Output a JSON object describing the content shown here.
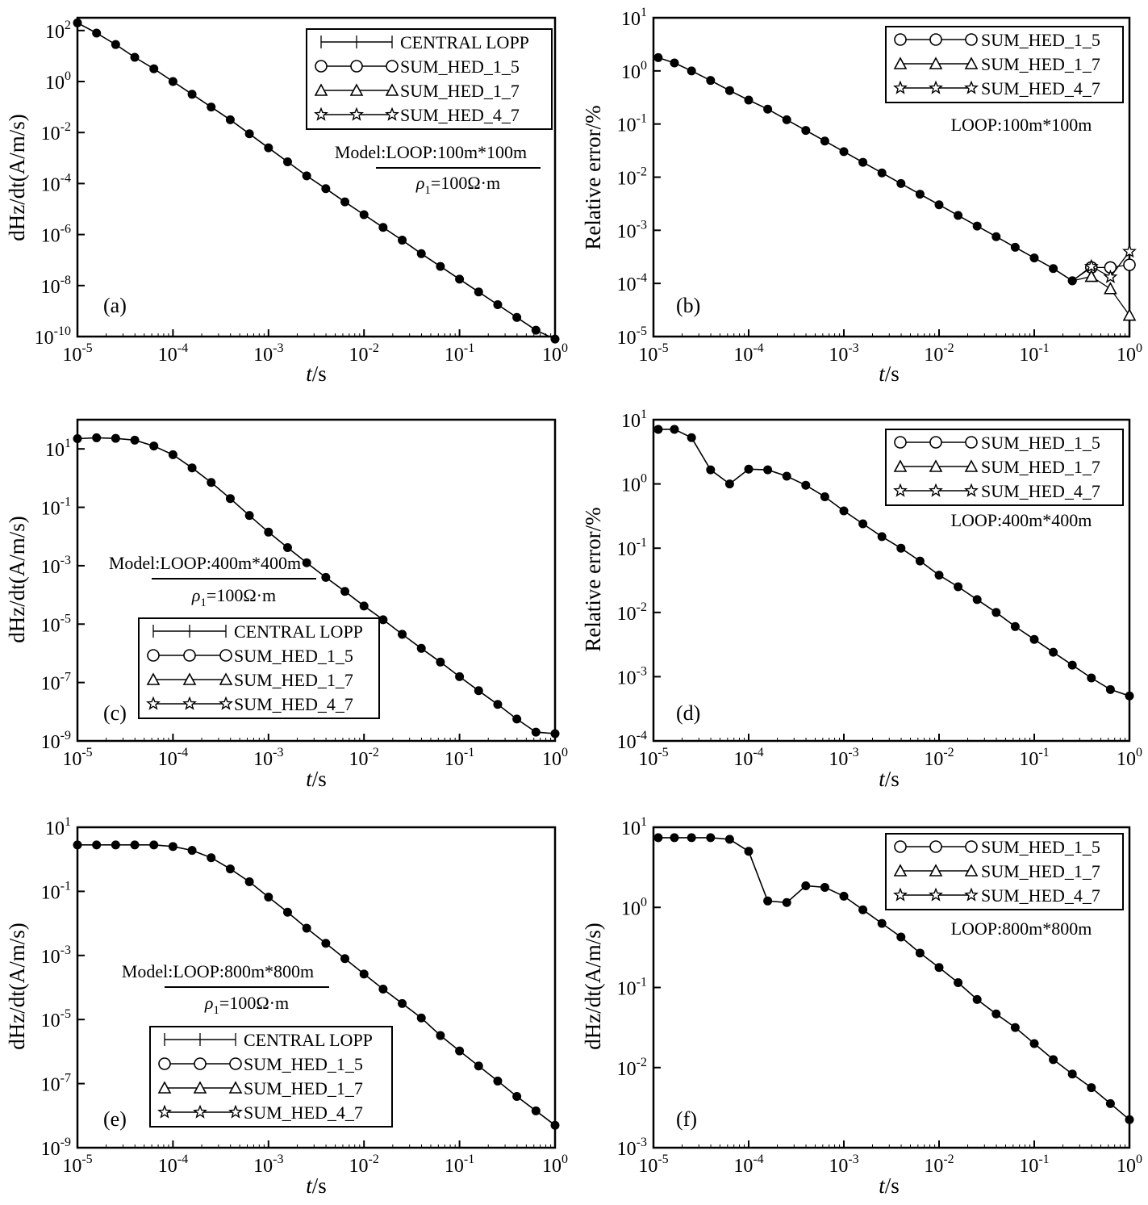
{
  "chart_data": [
    {
      "id": "a",
      "type": "line",
      "panel_label": "(a)",
      "xlabel_italic": "t",
      "xlabel_unit": "/s",
      "ylabel": "dHz/dt(A/m/s)",
      "xlim_log10": [
        -5,
        0
      ],
      "ylim_log10": [
        -10,
        2.5
      ],
      "x_ticks": [
        "-5",
        "-4",
        "-3",
        "-2",
        "-1",
        "0"
      ],
      "y_ticks": [
        "2",
        "0",
        "-2",
        "-4",
        "-6",
        "-8",
        "-10"
      ],
      "model": {
        "line1": "Model:LOOP:100m*100m",
        "rho": "ρ",
        "rho_sub": "1",
        "rho_rest": "=100Ω·m"
      },
      "legend": [
        "CENTRAL LOPP",
        "SUM_HED_1_5",
        "SUM_HED_1_7",
        "SUM_HED_4_7"
      ],
      "log_x": [
        -5.0,
        -4.8,
        -4.6,
        -4.4,
        -4.2,
        -4.0,
        -3.8,
        -3.6,
        -3.4,
        -3.2,
        -3.0,
        -2.8,
        -2.6,
        -2.4,
        -2.2,
        -2.0,
        -1.8,
        -1.6,
        -1.4,
        -1.2,
        -1.0,
        -0.8,
        -0.6,
        -0.4,
        -0.2,
        0.0
      ],
      "log_y": [
        2.3,
        1.9,
        1.45,
        0.95,
        0.5,
        0.0,
        -0.5,
        -1.0,
        -1.5,
        -2.05,
        -2.6,
        -3.15,
        -3.7,
        -4.2,
        -4.72,
        -5.22,
        -5.72,
        -6.22,
        -6.75,
        -7.25,
        -7.75,
        -8.25,
        -8.75,
        -9.25,
        -9.75,
        -10.1
      ]
    },
    {
      "id": "b",
      "type": "line",
      "panel_label": "(b)",
      "xlabel_italic": "t",
      "xlabel_unit": "/s",
      "ylabel": "Relative error/%",
      "xlim_log10": [
        -5,
        0
      ],
      "ylim_log10": [
        -5,
        1
      ],
      "x_ticks": [
        "-5",
        "-4",
        "-3",
        "-2",
        "-1",
        "0"
      ],
      "y_ticks": [
        "1",
        "0",
        "-1",
        "-2",
        "-3",
        "-4",
        "-5"
      ],
      "annotation": "LOOP:100m*100m",
      "legend": [
        "SUM_HED_1_5",
        "SUM_HED_1_7",
        "SUM_HED_4_7"
      ],
      "log_x": [
        -4.95,
        -4.78,
        -4.6,
        -4.4,
        -4.2,
        -4.0,
        -3.8,
        -3.6,
        -3.4,
        -3.2,
        -3.0,
        -2.8,
        -2.6,
        -2.4,
        -2.2,
        -2.0,
        -1.8,
        -1.6,
        -1.4,
        -1.2,
        -1.0,
        -0.8,
        -0.6
      ],
      "log_y": [
        0.25,
        0.15,
        0.0,
        -0.18,
        -0.37,
        -0.55,
        -0.72,
        -0.92,
        -1.12,
        -1.32,
        -1.52,
        -1.72,
        -1.92,
        -2.12,
        -2.32,
        -2.52,
        -2.72,
        -2.92,
        -3.12,
        -3.32,
        -3.52,
        -3.72,
        -3.95
      ],
      "tail_log_x": [
        -0.6,
        -0.4,
        -0.2,
        0.0
      ],
      "tail_series": [
        {
          "name": "SUM_HED_1_5",
          "log_y": [
            -3.95,
            -3.7,
            -3.7,
            -3.65
          ]
        },
        {
          "name": "SUM_HED_1_7",
          "log_y": [
            -3.95,
            -3.87,
            -4.1,
            -4.6
          ]
        },
        {
          "name": "SUM_HED_4_7",
          "log_y": [
            -3.95,
            -3.68,
            -3.88,
            -3.4
          ]
        }
      ]
    },
    {
      "id": "c",
      "type": "line",
      "panel_label": "(c)",
      "xlabel_italic": "t",
      "xlabel_unit": "/s",
      "ylabel": "dHz/dt(A/m/s)",
      "xlim_log10": [
        -5,
        0
      ],
      "ylim_log10": [
        -9,
        2
      ],
      "x_ticks": [
        "-5",
        "-4",
        "-3",
        "-2",
        "-1",
        "0"
      ],
      "y_ticks": [
        "1",
        "-1",
        "-3",
        "-5",
        "-7",
        "-9"
      ],
      "model": {
        "line1": "Model:LOOP:400m*400m",
        "rho": "ρ",
        "rho_sub": "1",
        "rho_rest": "=100Ω·m"
      },
      "legend": [
        "CENTRAL LOPP",
        "SUM_HED_1_5",
        "SUM_HED_1_7",
        "SUM_HED_4_7"
      ],
      "log_x": [
        -5.0,
        -4.8,
        -4.6,
        -4.4,
        -4.2,
        -4.0,
        -3.8,
        -3.6,
        -3.4,
        -3.2,
        -3.0,
        -2.8,
        -2.6,
        -2.4,
        -2.2,
        -2.0,
        -1.8,
        -1.6,
        -1.4,
        -1.2,
        -1.0,
        -0.8,
        -0.6,
        -0.4,
        -0.2,
        0.0
      ],
      "log_y": [
        1.35,
        1.38,
        1.36,
        1.3,
        1.1,
        0.8,
        0.35,
        -0.15,
        -0.7,
        -1.28,
        -1.85,
        -2.38,
        -2.9,
        -3.4,
        -3.88,
        -4.38,
        -4.85,
        -5.35,
        -5.83,
        -6.3,
        -6.8,
        -7.28,
        -7.75,
        -8.25,
        -8.7,
        -8.75
      ]
    },
    {
      "id": "d",
      "type": "line",
      "panel_label": "(d)",
      "xlabel_italic": "t",
      "xlabel_unit": "/s",
      "ylabel": "Relative error/%",
      "xlim_log10": [
        -5,
        0
      ],
      "ylim_log10": [
        -4,
        1
      ],
      "x_ticks": [
        "-5",
        "-4",
        "-3",
        "-2",
        "-1",
        "0"
      ],
      "y_ticks": [
        "1",
        "0",
        "-1",
        "-2",
        "-3",
        "-4"
      ],
      "annotation": "LOOP:400m*400m",
      "legend": [
        "SUM_HED_1_5",
        "SUM_HED_1_7",
        "SUM_HED_4_7"
      ],
      "log_x": [
        -4.95,
        -4.78,
        -4.6,
        -4.4,
        -4.2,
        -4.0,
        -3.8,
        -3.6,
        -3.4,
        -3.2,
        -3.0,
        -2.8,
        -2.6,
        -2.4,
        -2.2,
        -2.0,
        -1.8,
        -1.6,
        -1.4,
        -1.2,
        -1.0,
        -0.8,
        -0.6,
        -0.4,
        -0.2,
        0.0
      ],
      "log_y": [
        0.85,
        0.85,
        0.72,
        0.22,
        0.0,
        0.23,
        0.22,
        0.12,
        -0.02,
        -0.2,
        -0.42,
        -0.62,
        -0.82,
        -1.0,
        -1.2,
        -1.42,
        -1.6,
        -1.8,
        -2.0,
        -2.22,
        -2.42,
        -2.62,
        -2.82,
        -3.02,
        -3.2,
        -3.3
      ]
    },
    {
      "id": "e",
      "type": "line",
      "panel_label": "(e)",
      "xlabel_italic": "t",
      "xlabel_unit": "/s",
      "ylabel": "dHz/dt(A/m/s)",
      "xlim_log10": [
        -5,
        0
      ],
      "ylim_log10": [
        -9,
        1
      ],
      "x_ticks": [
        "-5",
        "-4",
        "-3",
        "-2",
        "-1",
        "0"
      ],
      "y_ticks": [
        "1",
        "-1",
        "-3",
        "-5",
        "-7",
        "-9"
      ],
      "model": {
        "line1": "Model:LOOP:800m*800m",
        "rho": "ρ",
        "rho_sub": "1",
        "rho_rest": "=100Ω·m"
      },
      "legend": [
        "CENTRAL LOPP",
        "SUM_HED_1_5",
        "SUM_HED_1_7",
        "SUM_HED_4_7"
      ],
      "log_x": [
        -5.0,
        -4.8,
        -4.6,
        -4.4,
        -4.2,
        -4.0,
        -3.8,
        -3.6,
        -3.4,
        -3.2,
        -3.0,
        -2.8,
        -2.6,
        -2.4,
        -2.2,
        -2.0,
        -1.8,
        -1.6,
        -1.4,
        -1.2,
        -1.0,
        -0.8,
        -0.6,
        -0.4,
        -0.2,
        0.0
      ],
      "log_y": [
        0.45,
        0.45,
        0.45,
        0.45,
        0.45,
        0.4,
        0.28,
        0.05,
        -0.3,
        -0.7,
        -1.18,
        -1.65,
        -2.15,
        -2.62,
        -3.1,
        -3.58,
        -4.05,
        -4.5,
        -4.95,
        -5.5,
        -5.98,
        -6.45,
        -6.92,
        -7.4,
        -7.85,
        -8.3
      ]
    },
    {
      "id": "f",
      "type": "line",
      "panel_label": "(f)",
      "xlabel_italic": "t",
      "xlabel_unit": "/s",
      "ylabel": "dHz/dt(A/m/s)",
      "xlim_log10": [
        -5,
        0
      ],
      "ylim_log10": [
        -3,
        1
      ],
      "x_ticks": [
        "-5",
        "-4",
        "-3",
        "-2",
        "-1",
        "0"
      ],
      "y_ticks": [
        "1",
        "0",
        "-1",
        "-2",
        "-3"
      ],
      "annotation": "LOOP:800m*800m",
      "legend": [
        "SUM_HED_1_5",
        "SUM_HED_1_7",
        "SUM_HED_4_7"
      ],
      "log_x": [
        -4.95,
        -4.78,
        -4.6,
        -4.4,
        -4.2,
        -4.0,
        -3.8,
        -3.6,
        -3.4,
        -3.2,
        -3.0,
        -2.8,
        -2.6,
        -2.4,
        -2.2,
        -2.0,
        -1.8,
        -1.6,
        -1.4,
        -1.2,
        -1.0,
        -0.8,
        -0.6,
        -0.4,
        -0.2,
        0.0
      ],
      "log_y": [
        0.87,
        0.87,
        0.87,
        0.87,
        0.85,
        0.7,
        0.08,
        0.06,
        0.27,
        0.25,
        0.14,
        -0.03,
        -0.2,
        -0.37,
        -0.57,
        -0.75,
        -0.94,
        -1.15,
        -1.33,
        -1.5,
        -1.7,
        -1.9,
        -2.08,
        -2.25,
        -2.45,
        -2.65
      ]
    }
  ]
}
